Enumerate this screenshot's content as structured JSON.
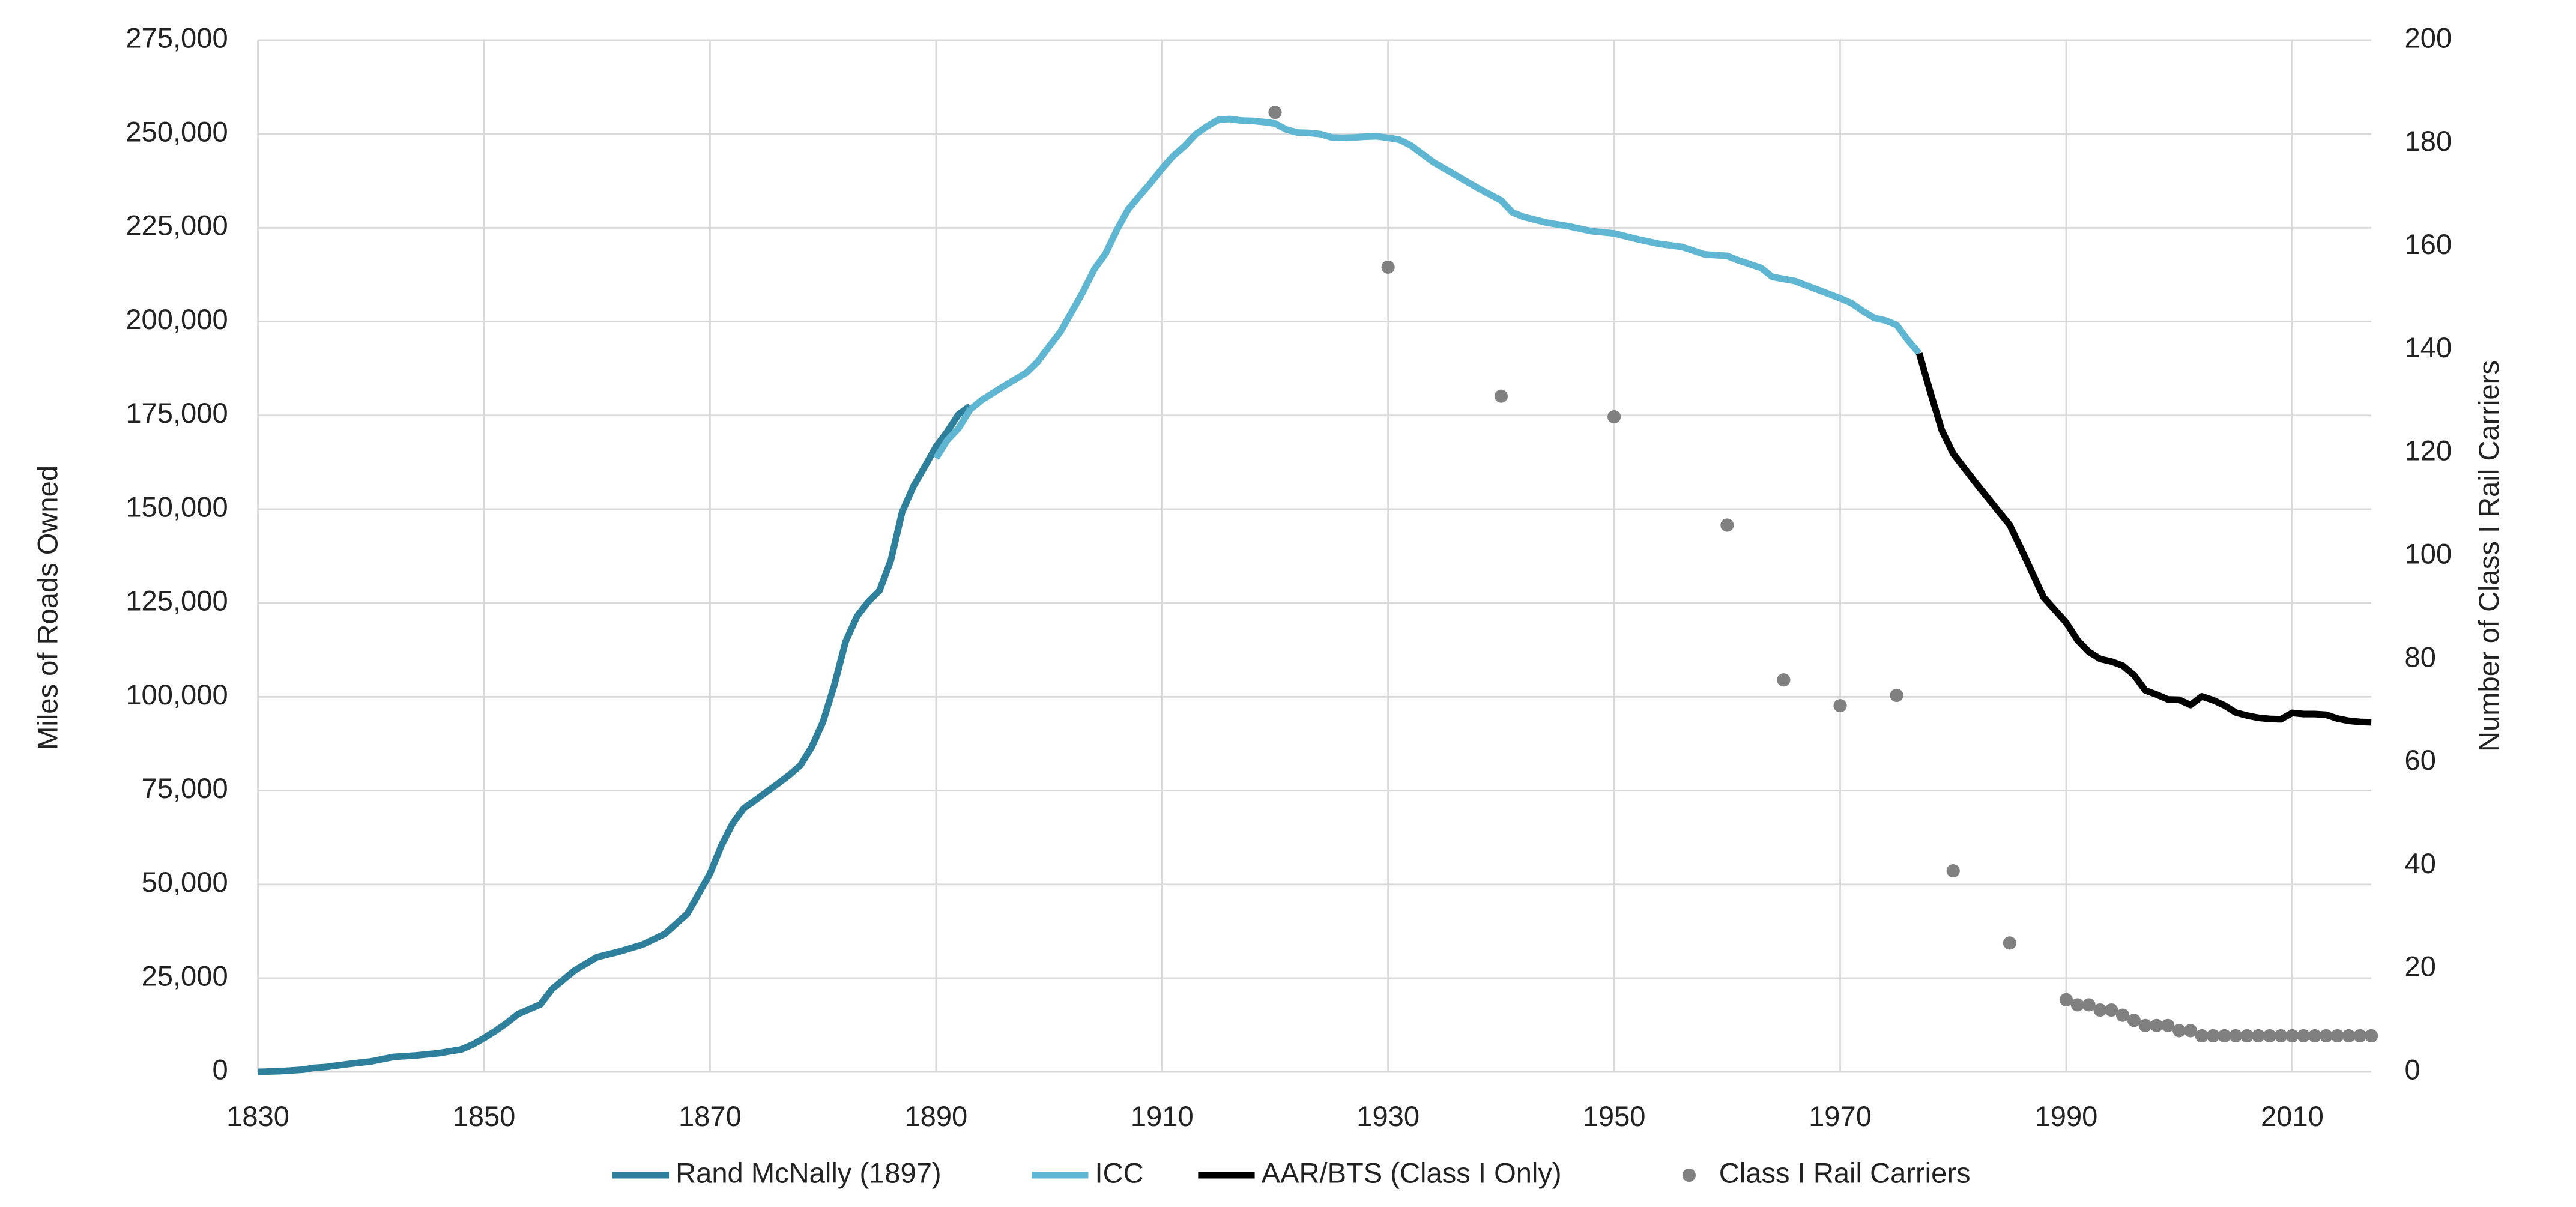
{
  "chart_data": {
    "type": "line",
    "ylabel": "Miles of Roads Owned",
    "y2label": "Number of Class I Rail Carriers",
    "xlim": [
      1830,
      2017
    ],
    "xticks": [
      1830,
      1850,
      1870,
      1890,
      1910,
      1930,
      1950,
      1970,
      1990,
      2010
    ],
    "ylim": [
      0,
      275000
    ],
    "yticks": [
      0,
      {
        "value": 25000,
        "label": "25,000"
      },
      {
        "value": 50000,
        "label": "50,000"
      },
      {
        "value": 75000,
        "label": "75,000"
      },
      {
        "value": 100000,
        "label": "100,000"
      },
      {
        "value": 125000,
        "label": "125,000"
      },
      {
        "value": 150000,
        "label": "150,000"
      },
      {
        "value": 175000,
        "label": "175,000"
      },
      {
        "value": 200000,
        "label": "200,000"
      },
      {
        "value": 225000,
        "label": "225,000"
      },
      {
        "value": 250000,
        "label": "250,000"
      },
      {
        "value": 275000,
        "label": "275,000"
      }
    ],
    "y2lim": [
      0,
      200
    ],
    "y2ticks": [
      0,
      20,
      40,
      60,
      80,
      100,
      120,
      140,
      160,
      180,
      200
    ],
    "grid": true,
    "legend": "bottom",
    "series": [
      {
        "name": "Rand McNally (1897)",
        "color": "#2e7f9c",
        "type": "line",
        "x": [
          1830,
          1832,
          1834,
          1835,
          1836,
          1838,
          1840,
          1842,
          1844,
          1846,
          1848,
          1849,
          1850,
          1851,
          1852,
          1853,
          1854,
          1855,
          1856,
          1858,
          1860,
          1862,
          1864,
          1866,
          1868,
          1870,
          1871,
          1872,
          1873,
          1874,
          1876,
          1877,
          1878,
          1879,
          1880,
          1881,
          1882,
          1883,
          1884,
          1885,
          1886,
          1887,
          1888,
          1889,
          1890,
          1891,
          1892,
          1893
        ],
        "values": [
          0,
          200,
          600,
          1100,
          1300,
          2100,
          2800,
          4000,
          4400,
          5000,
          6000,
          7300,
          9000,
          10900,
          13000,
          15400,
          16700,
          18000,
          22000,
          27000,
          30600,
          32100,
          33900,
          36800,
          42200,
          52900,
          60300,
          66200,
          70300,
          72400,
          76800,
          79100,
          81700,
          86600,
          93300,
          103100,
          114700,
          121400,
          125300,
          128300,
          136300,
          149200,
          156100,
          161300,
          166700,
          170700,
          175300,
          177500
        ]
      },
      {
        "name": "ICC",
        "color": "#5fb6d2",
        "type": "line",
        "x": [
          1890,
          1891,
          1892,
          1893,
          1894,
          1896,
          1898,
          1899,
          1900,
          1901,
          1902,
          1903,
          1904,
          1905,
          1906,
          1907,
          1908,
          1909,
          1910,
          1911,
          1912,
          1913,
          1914,
          1915,
          1916,
          1917,
          1918,
          1919,
          1920,
          1921,
          1922,
          1923,
          1924,
          1925,
          1926,
          1927,
          1928,
          1929,
          1930,
          1931,
          1932,
          1934,
          1936,
          1938,
          1940,
          1941,
          1942,
          1944,
          1946,
          1948,
          1950,
          1952,
          1954,
          1956,
          1958,
          1960,
          1961,
          1963,
          1964,
          1966,
          1968,
          1970,
          1971,
          1972,
          1973,
          1974,
          1975,
          1976,
          1977
        ],
        "values": [
          163600,
          168400,
          171600,
          176500,
          179000,
          182800,
          186400,
          189300,
          193300,
          197200,
          202500,
          207900,
          213900,
          218100,
          224400,
          229900,
          233500,
          237000,
          240800,
          244200,
          246800,
          250000,
          252100,
          253800,
          254000,
          253600,
          253500,
          253200,
          252800,
          251200,
          250400,
          250300,
          250000,
          249100,
          249000,
          249100,
          249300,
          249400,
          249000,
          248500,
          247000,
          242500,
          239000,
          235500,
          232300,
          229100,
          227900,
          226400,
          225400,
          224100,
          223500,
          222000,
          220700,
          219900,
          217900,
          217500,
          216300,
          214300,
          211900,
          210800,
          208500,
          206200,
          204900,
          202800,
          201000,
          200300,
          199100,
          195000,
          191500
        ]
      },
      {
        "name": "AAR/BTS (Class I Only)",
        "color": "#000000",
        "type": "line",
        "x": [
          1977,
          1978,
          1979,
          1980,
          1982,
          1984,
          1985,
          1986,
          1988,
          1990,
          1991,
          1992,
          1993,
          1994,
          1995,
          1996,
          1997,
          1998,
          1999,
          2000,
          2001,
          2002,
          2003,
          2004,
          2005,
          2006,
          2007,
          2008,
          2009,
          2010,
          2011,
          2012,
          2013,
          2014,
          2015,
          2016,
          2017
        ],
        "values": [
          191500,
          181000,
          171000,
          164800,
          157000,
          149500,
          145800,
          139500,
          126500,
          119800,
          115100,
          112000,
          110100,
          109400,
          108300,
          105800,
          101700,
          100600,
          99300,
          99200,
          97800,
          100100,
          99100,
          97700,
          95800,
          95000,
          94400,
          94100,
          94000,
          95700,
          95400,
          95400,
          95200,
          94200,
          93600,
          93300,
          93200
        ]
      },
      {
        "name": "Class I Rail Carriers",
        "color": "#808080",
        "type": "scatter",
        "axis": "y2",
        "x": [
          1920,
          1930,
          1940,
          1950,
          1960,
          1965,
          1970,
          1975,
          1980,
          1985,
          1990,
          1991,
          1992,
          1993,
          1994,
          1995,
          1996,
          1997,
          1998,
          1999,
          2000,
          2001,
          2002,
          2003,
          2004,
          2005,
          2006,
          2007,
          2008,
          2009,
          2010,
          2011,
          2012,
          2013,
          2014,
          2015,
          2016,
          2017
        ],
        "values": [
          186,
          156,
          131,
          127,
          106,
          76,
          71,
          73,
          39,
          25,
          14,
          13,
          13,
          12,
          12,
          11,
          10,
          9,
          9,
          9,
          8,
          8,
          7,
          7,
          7,
          7,
          7,
          7,
          7,
          7,
          7,
          7,
          7,
          7,
          7,
          7,
          7,
          7
        ]
      }
    ]
  }
}
